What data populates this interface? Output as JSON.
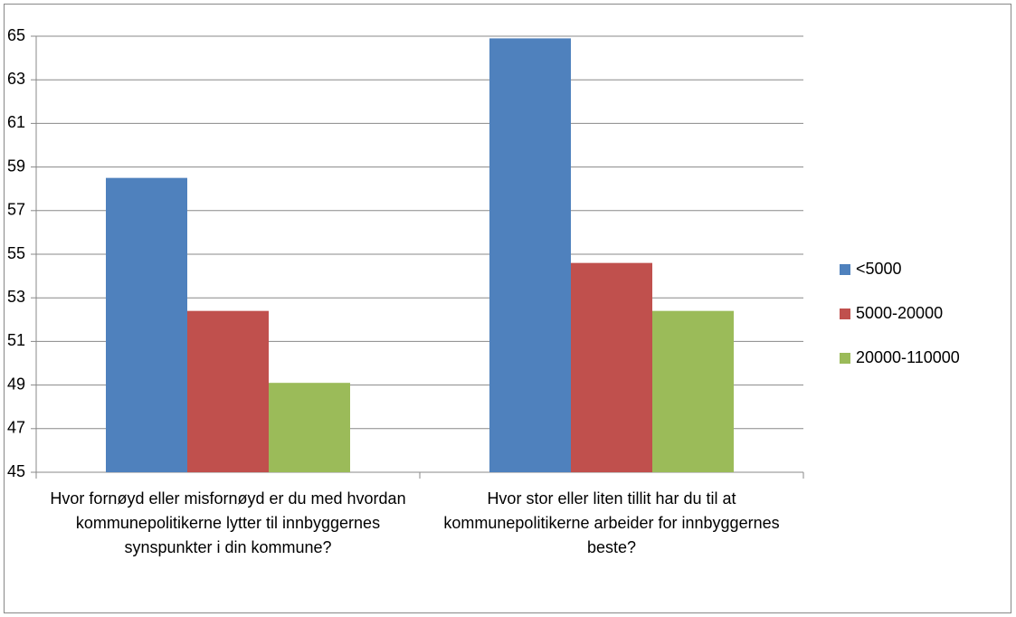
{
  "chart_data": {
    "type": "bar",
    "categories": [
      "Hvor fornøyd eller misfornøyd er du med hvordan kommunepolitikerne lytter til innbyggernes synspunkter i din kommune?",
      "Hvor stor eller liten tillit har du til at kommunepolitikerne arbeider for innbyggernes beste?"
    ],
    "series": [
      {
        "name": "<5000",
        "color": "#4f81bd",
        "values": [
          58.5,
          64.9
        ]
      },
      {
        "name": "5000-20000",
        "color": "#c0504d",
        "values": [
          52.4,
          54.6
        ]
      },
      {
        "name": "20000-110000",
        "color": "#9bbb59",
        "values": [
          49.1,
          52.4
        ]
      }
    ],
    "ylim": [
      45,
      65
    ],
    "yticks": [
      45,
      47,
      49,
      51,
      53,
      55,
      57,
      59,
      61,
      63,
      65
    ],
    "grid": true,
    "legend": "right"
  }
}
